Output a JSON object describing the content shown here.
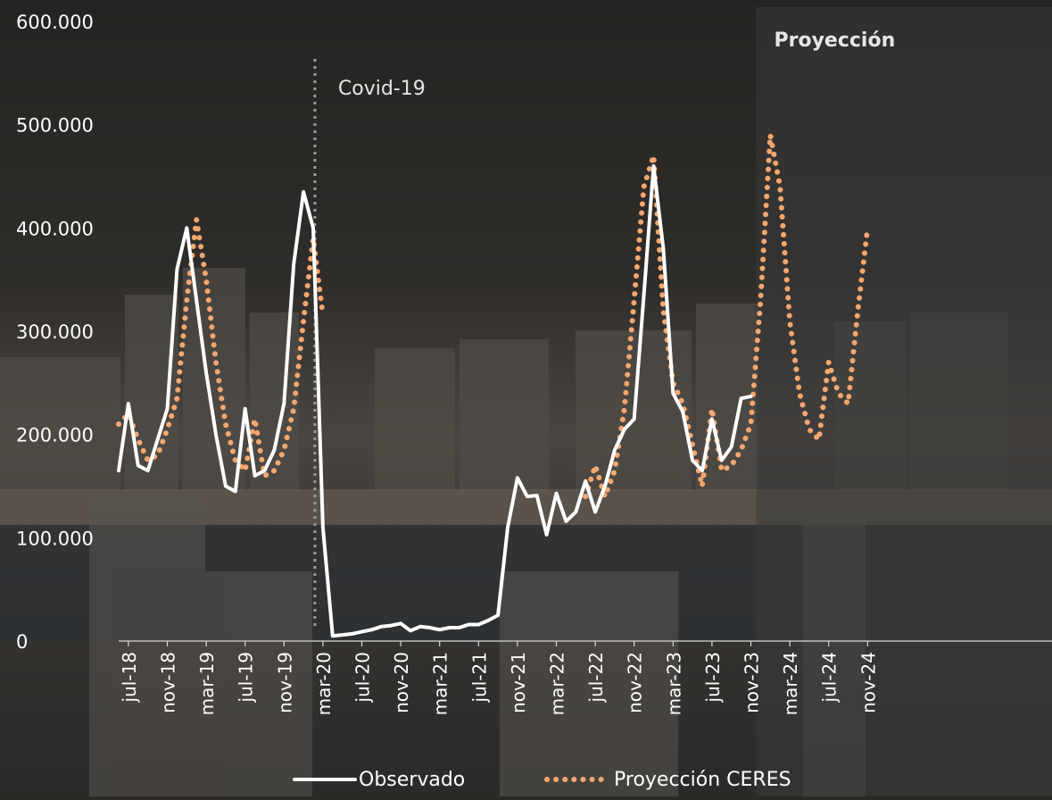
{
  "chart_data": {
    "type": "line",
    "title": "",
    "xlabel": "",
    "ylabel": "",
    "ylim": [
      0,
      600000
    ],
    "y_ticks": [
      "0",
      "100.000",
      "200.000",
      "300.000",
      "400.000",
      "500.000",
      "600.000"
    ],
    "x_tick_labels": [
      "jul-18",
      "nov-18",
      "mar-19",
      "jul-19",
      "nov-19",
      "mar-20",
      "jul-20",
      "nov-20",
      "mar-21",
      "jul-21",
      "nov-21",
      "mar-22",
      "jul-22",
      "nov-22",
      "mar-23",
      "jul-23",
      "nov-23",
      "mar-24",
      "jul-24",
      "nov-24"
    ],
    "x": [
      "jun-18",
      "jul-18",
      "ago-18",
      "sep-18",
      "oct-18",
      "nov-18",
      "dic-18",
      "ene-19",
      "feb-19",
      "mar-19",
      "abr-19",
      "may-19",
      "jun-19",
      "jul-19",
      "ago-19",
      "sep-19",
      "oct-19",
      "nov-19",
      "dic-19",
      "ene-20",
      "feb-20",
      "mar-20",
      "abr-20",
      "may-20",
      "jun-20",
      "jul-20",
      "ago-20",
      "sep-20",
      "oct-20",
      "nov-20",
      "dic-20",
      "ene-21",
      "feb-21",
      "mar-21",
      "abr-21",
      "may-21",
      "jun-21",
      "jul-21",
      "ago-21",
      "sep-21",
      "oct-21",
      "nov-21",
      "dic-21",
      "ene-22",
      "feb-22",
      "mar-22",
      "abr-22",
      "may-22",
      "jun-22",
      "jul-22",
      "ago-22",
      "sep-22",
      "oct-22",
      "nov-22",
      "dic-22",
      "ene-23",
      "feb-23",
      "mar-23",
      "abr-23",
      "may-23",
      "jun-23",
      "jul-23",
      "ago-23",
      "sep-23",
      "oct-23",
      "nov-23",
      "dic-23",
      "ene-24",
      "feb-24",
      "mar-24",
      "abr-24",
      "may-24",
      "jun-24",
      "jul-24",
      "ago-24",
      "sep-24",
      "oct-24",
      "nov-24"
    ],
    "series": [
      {
        "name": "Observado",
        "color": "#ffffff",
        "style": "solid",
        "values": [
          165000,
          230000,
          170000,
          165000,
          195000,
          225000,
          360000,
          400000,
          330000,
          260000,
          200000,
          150000,
          145000,
          225000,
          160000,
          165000,
          185000,
          230000,
          365000,
          435000,
          400000,
          110000,
          5000,
          6000,
          7000,
          9000,
          11000,
          14000,
          15000,
          17000,
          10000,
          14000,
          13000,
          11000,
          13000,
          13000,
          16000,
          16000,
          20000,
          25000,
          110000,
          158000,
          140000,
          141000,
          103000,
          143000,
          116000,
          125000,
          155000,
          125000,
          150000,
          185000,
          205000,
          215000,
          335000,
          460000,
          380000,
          240000,
          222000,
          175000,
          165000,
          215000,
          175000,
          188000,
          235000,
          237000,
          null,
          null,
          null,
          null,
          null,
          null,
          null,
          null,
          null,
          null,
          null,
          null
        ]
      },
      {
        "name": "Proyección CERES",
        "color": "#f4a76e",
        "style": "dotted",
        "values": [
          210000,
          220000,
          195000,
          175000,
          180000,
          205000,
          235000,
          330000,
          408000,
          350000,
          270000,
          210000,
          175000,
          165000,
          215000,
          160000,
          165000,
          185000,
          225000,
          310000,
          390000,
          315000,
          null,
          null,
          null,
          null,
          null,
          null,
          null,
          null,
          null,
          null,
          null,
          null,
          null,
          null,
          null,
          null,
          null,
          null,
          null,
          null,
          null,
          null,
          null,
          null,
          null,
          null,
          140000,
          170000,
          140000,
          165000,
          225000,
          330000,
          440000,
          470000,
          320000,
          250000,
          230000,
          190000,
          150000,
          225000,
          165000,
          170000,
          185000,
          210000,
          330000,
          490000,
          440000,
          310000,
          240000,
          205000,
          195000,
          270000,
          240000,
          230000,
          320000,
          400000
        ]
      }
    ],
    "legend": {
      "position": "bottom"
    }
  },
  "annotations": {
    "event_label": "Covid-19",
    "projection_label": "Proyección"
  }
}
